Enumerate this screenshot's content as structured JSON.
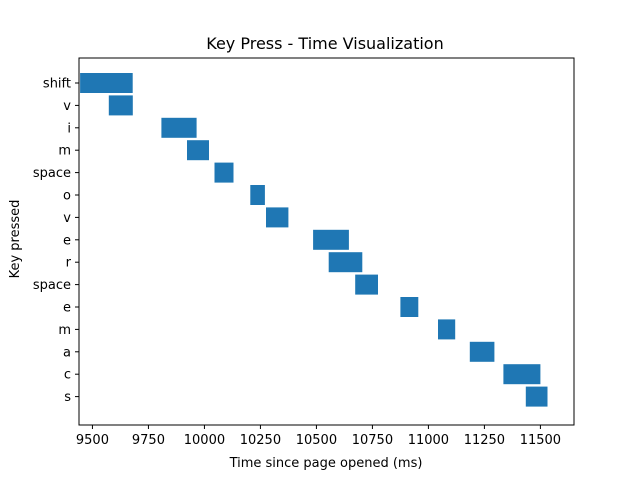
{
  "chart_data": {
    "type": "bar",
    "orientation": "horizontal-timeline",
    "title": "Key Press - Time Visualization",
    "xlabel": "Time since page opened (ms)",
    "ylabel": "Key pressed",
    "xlim": [
      9440,
      11650
    ],
    "xticks": [
      9500,
      9750,
      10000,
      10250,
      10500,
      10750,
      11000,
      11250,
      11500
    ],
    "xtick_labels": [
      "9500",
      "9750",
      "10000",
      "10250",
      "10500",
      "10750",
      "11000",
      "11250",
      "11500"
    ],
    "grid": false,
    "legend": "none",
    "bar_color": "#1f77b4",
    "bars": [
      {
        "key": "shift",
        "start": 9445,
        "end": 9680
      },
      {
        "key": "v",
        "start": 9573,
        "end": 9680
      },
      {
        "key": "i",
        "start": 9808,
        "end": 9965
      },
      {
        "key": "m",
        "start": 9922,
        "end": 10020
      },
      {
        "key": "space",
        "start": 10045,
        "end": 10130
      },
      {
        "key": "o",
        "start": 10205,
        "end": 10270
      },
      {
        "key": "v",
        "start": 10275,
        "end": 10375
      },
      {
        "key": "e",
        "start": 10485,
        "end": 10645
      },
      {
        "key": "r",
        "start": 10555,
        "end": 10705
      },
      {
        "key": "space",
        "start": 10673,
        "end": 10775
      },
      {
        "key": "e",
        "start": 10875,
        "end": 10955
      },
      {
        "key": "m",
        "start": 11043,
        "end": 11120
      },
      {
        "key": "a",
        "start": 11185,
        "end": 11295
      },
      {
        "key": "c",
        "start": 11335,
        "end": 11500
      },
      {
        "key": "s",
        "start": 11435,
        "end": 11532
      }
    ]
  }
}
